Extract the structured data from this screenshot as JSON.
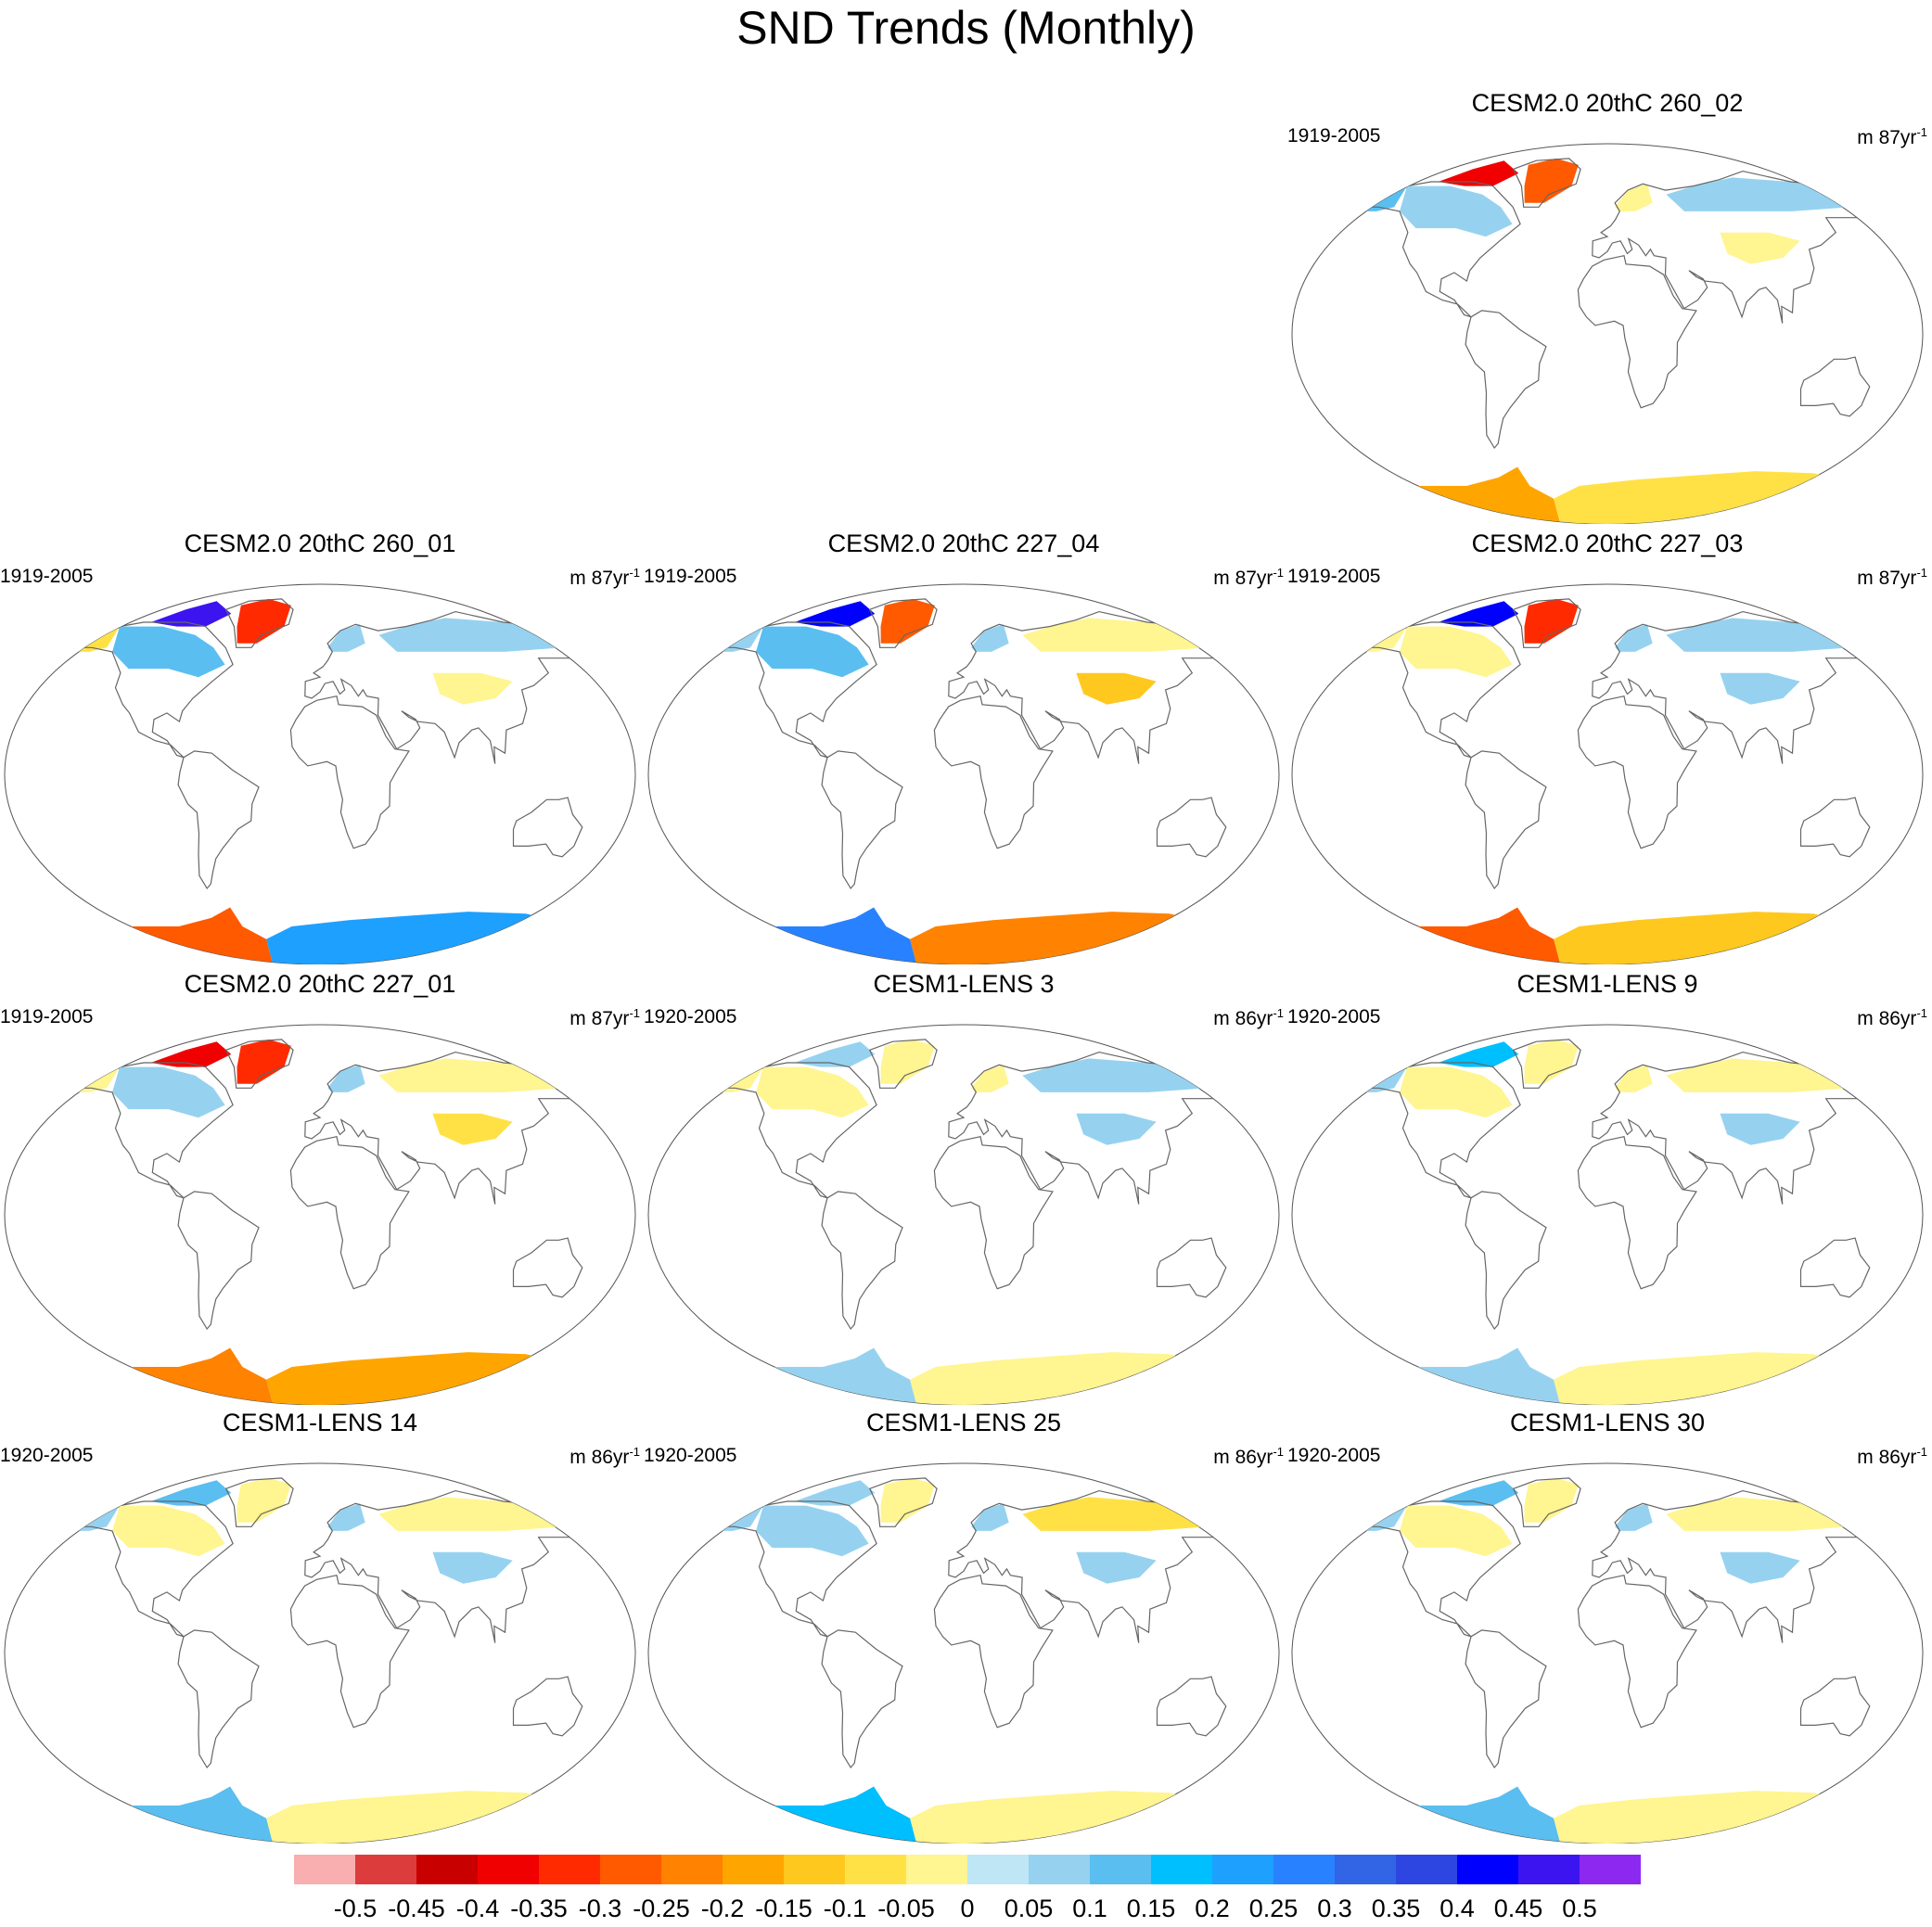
{
  "title": "SND Trends (Monthly)",
  "chart_data": {
    "type": "map",
    "title": "SND Trends (Monthly)",
    "projection": "Winkel-tripel style world map",
    "panels": [
      {
        "id": "p02",
        "title": "CESM2.0 20thC 260_02",
        "years": "1919-2005",
        "units": "m 87yr",
        "units_sup": "-1",
        "regions": [
          {
            "name": "Alaska",
            "trend": 0.1
          },
          {
            "name": "Canada",
            "trend": 0.05
          },
          {
            "name": "Arctic Archipelago",
            "trend": -0.4
          },
          {
            "name": "Greenland",
            "trend": -0.3
          },
          {
            "name": "Scandinavia",
            "trend": -0.05
          },
          {
            "name": "Siberia",
            "trend": 0.05
          },
          {
            "name": "Central Asia",
            "trend": -0.05
          },
          {
            "name": "Antarctica West",
            "trend": -0.2
          },
          {
            "name": "Antarctica East",
            "trend": -0.1
          }
        ]
      },
      {
        "id": "p01",
        "title": "CESM2.0 20thC 260_01",
        "years": "1919-2005",
        "units": "m 87yr",
        "units_sup": "-1",
        "regions": [
          {
            "name": "Alaska",
            "trend": -0.1
          },
          {
            "name": "Canada",
            "trend": 0.1
          },
          {
            "name": "Arctic Archipelago",
            "trend": 0.45
          },
          {
            "name": "Greenland",
            "trend": -0.35
          },
          {
            "name": "Scandinavia",
            "trend": 0.05
          },
          {
            "name": "Siberia",
            "trend": 0.05
          },
          {
            "name": "Central Asia",
            "trend": -0.05
          },
          {
            "name": "Antarctica West",
            "trend": -0.3
          },
          {
            "name": "Antarctica East",
            "trend": 0.2
          }
        ]
      },
      {
        "id": "p04",
        "title": "CESM2.0 20thC 227_04",
        "years": "1919-2005",
        "units": "m 87yr",
        "units_sup": "-1",
        "regions": [
          {
            "name": "Alaska",
            "trend": 0.05
          },
          {
            "name": "Canada",
            "trend": 0.1
          },
          {
            "name": "Arctic Archipelago",
            "trend": 0.4
          },
          {
            "name": "Greenland",
            "trend": -0.3
          },
          {
            "name": "Scandinavia",
            "trend": 0.05
          },
          {
            "name": "Siberia",
            "trend": -0.05
          },
          {
            "name": "Central Asia",
            "trend": -0.15
          },
          {
            "name": "Antarctica West",
            "trend": 0.25
          },
          {
            "name": "Antarctica East",
            "trend": -0.25
          }
        ]
      },
      {
        "id": "p03",
        "title": "CESM2.0 20thC 227_03",
        "years": "1919-2005",
        "units": "m 87yr",
        "units_sup": "-1",
        "regions": [
          {
            "name": "Alaska",
            "trend": -0.05
          },
          {
            "name": "Canada",
            "trend": -0.05
          },
          {
            "name": "Arctic Archipelago",
            "trend": 0.4
          },
          {
            "name": "Greenland",
            "trend": -0.35
          },
          {
            "name": "Scandinavia",
            "trend": 0.05
          },
          {
            "name": "Siberia",
            "trend": 0.05
          },
          {
            "name": "Central Asia",
            "trend": 0.05
          },
          {
            "name": "Antarctica West",
            "trend": -0.3
          },
          {
            "name": "Antarctica East",
            "trend": -0.15
          }
        ]
      },
      {
        "id": "p2701",
        "title": "CESM2.0 20thC 227_01",
        "years": "1919-2005",
        "units": "m 87yr",
        "units_sup": "-1",
        "regions": [
          {
            "name": "Alaska",
            "trend": -0.05
          },
          {
            "name": "Canada",
            "trend": 0.05
          },
          {
            "name": "Arctic Archipelago",
            "trend": -0.4
          },
          {
            "name": "Greenland",
            "trend": -0.35
          },
          {
            "name": "Scandinavia",
            "trend": 0.05
          },
          {
            "name": "Siberia",
            "trend": -0.05
          },
          {
            "name": "Central Asia",
            "trend": -0.1
          },
          {
            "name": "Antarctica West",
            "trend": -0.25
          },
          {
            "name": "Antarctica East",
            "trend": -0.2
          }
        ]
      },
      {
        "id": "l3",
        "title": "CESM1-LENS 3",
        "years": "1920-2005",
        "units": "m 86yr",
        "units_sup": "-1",
        "regions": [
          {
            "name": "Alaska",
            "trend": -0.05
          },
          {
            "name": "Canada",
            "trend": -0.05
          },
          {
            "name": "Arctic Archipelago",
            "trend": 0.05
          },
          {
            "name": "Greenland",
            "trend": -0.05
          },
          {
            "name": "Scandinavia",
            "trend": -0.05
          },
          {
            "name": "Siberia",
            "trend": 0.05
          },
          {
            "name": "Central Asia",
            "trend": 0.05
          },
          {
            "name": "Antarctica West",
            "trend": 0.05
          },
          {
            "name": "Antarctica East",
            "trend": -0.05
          }
        ]
      },
      {
        "id": "l9",
        "title": "CESM1-LENS 9",
        "years": "1920-2005",
        "units": "m 86yr",
        "units_sup": "-1",
        "regions": [
          {
            "name": "Alaska",
            "trend": 0.05
          },
          {
            "name": "Canada",
            "trend": -0.05
          },
          {
            "name": "Arctic Archipelago",
            "trend": 0.15
          },
          {
            "name": "Greenland",
            "trend": -0.05
          },
          {
            "name": "Scandinavia",
            "trend": -0.05
          },
          {
            "name": "Siberia",
            "trend": -0.05
          },
          {
            "name": "Central Asia",
            "trend": 0.05
          },
          {
            "name": "Antarctica West",
            "trend": 0.05
          },
          {
            "name": "Antarctica East",
            "trend": -0.05
          }
        ]
      },
      {
        "id": "l14",
        "title": "CESM1-LENS 14",
        "years": "1920-2005",
        "units": "m 86yr",
        "units_sup": "-1",
        "regions": [
          {
            "name": "Alaska",
            "trend": 0.05
          },
          {
            "name": "Canada",
            "trend": -0.05
          },
          {
            "name": "Arctic Archipelago",
            "trend": 0.1
          },
          {
            "name": "Greenland",
            "trend": -0.05
          },
          {
            "name": "Scandinavia",
            "trend": 0.05
          },
          {
            "name": "Siberia",
            "trend": -0.05
          },
          {
            "name": "Central Asia",
            "trend": 0.05
          },
          {
            "name": "Antarctica West",
            "trend": 0.1
          },
          {
            "name": "Antarctica East",
            "trend": -0.05
          }
        ]
      },
      {
        "id": "l25",
        "title": "CESM1-LENS 25",
        "years": "1920-2005",
        "units": "m 86yr",
        "units_sup": "-1",
        "regions": [
          {
            "name": "Alaska",
            "trend": 0.05
          },
          {
            "name": "Canada",
            "trend": 0.05
          },
          {
            "name": "Arctic Archipelago",
            "trend": 0.05
          },
          {
            "name": "Greenland",
            "trend": -0.05
          },
          {
            "name": "Scandinavia",
            "trend": 0.05
          },
          {
            "name": "Siberia",
            "trend": -0.1
          },
          {
            "name": "Central Asia",
            "trend": 0.05
          },
          {
            "name": "Antarctica West",
            "trend": 0.15
          },
          {
            "name": "Antarctica East",
            "trend": -0.05
          }
        ]
      },
      {
        "id": "l30",
        "title": "CESM1-LENS 30",
        "years": "1920-2005",
        "units": "m 86yr",
        "units_sup": "-1",
        "regions": [
          {
            "name": "Alaska",
            "trend": 0.05
          },
          {
            "name": "Canada",
            "trend": -0.05
          },
          {
            "name": "Arctic Archipelago",
            "trend": 0.1
          },
          {
            "name": "Greenland",
            "trend": -0.05
          },
          {
            "name": "Scandinavia",
            "trend": 0.05
          },
          {
            "name": "Siberia",
            "trend": -0.05
          },
          {
            "name": "Central Asia",
            "trend": 0.05
          },
          {
            "name": "Antarctica West",
            "trend": 0.1
          },
          {
            "name": "Antarctica East",
            "trend": -0.05
          }
        ]
      }
    ],
    "colorbar": {
      "levels": [
        -0.5,
        -0.45,
        -0.4,
        -0.35,
        -0.3,
        -0.25,
        -0.2,
        -0.15,
        -0.1,
        -0.05,
        0,
        0.05,
        0.1,
        0.15,
        0.2,
        0.25,
        0.3,
        0.35,
        0.4,
        0.45,
        0.5
      ],
      "labels": [
        "-0.5",
        "-0.45",
        "-0.4",
        "-0.35",
        "-0.3",
        "-0.25",
        "-0.2",
        "-0.15",
        "-0.1",
        "-0.05",
        "0",
        "0.05",
        "0.1",
        "0.15",
        "0.2",
        "0.25",
        "0.3",
        "0.35",
        "0.4",
        "0.45",
        "0.5"
      ],
      "colors": [
        "#f9aeb0",
        "#dc3c3c",
        "#c80000",
        "#f00000",
        "#ff2a00",
        "#ff5a00",
        "#ff8200",
        "#ffa500",
        "#ffc81e",
        "#ffe146",
        "#fff591",
        "#bee6f5",
        "#96d2f0",
        "#5abef0",
        "#00bfff",
        "#1ea0ff",
        "#2882ff",
        "#3264e6",
        "#2d46e1",
        "#0000ff",
        "#3c14f0",
        "#8c28f0"
      ]
    }
  }
}
